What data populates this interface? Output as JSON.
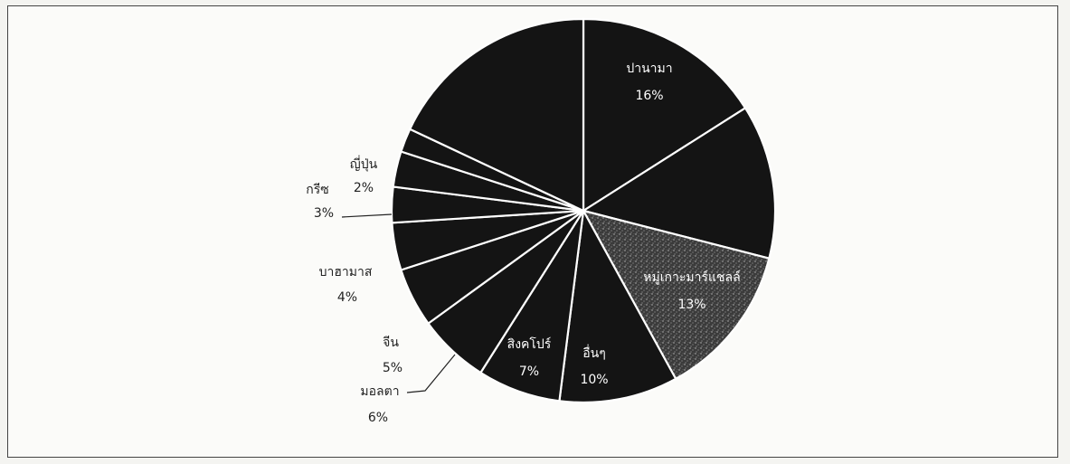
{
  "chart_data": {
    "type": "pie",
    "title": "",
    "slices": [
      {
        "label": "ปานามา",
        "value": 16,
        "value_label": "16%",
        "label_placement": "inside",
        "color": "#141414"
      },
      {
        "label": "",
        "value": 13,
        "value_label": "",
        "label_placement": "inside",
        "color": "#141414"
      },
      {
        "label": "หมู่เกาะมาร์แชลล์",
        "value": 13,
        "value_label": "13%",
        "label_placement": "inside",
        "color": "#3a3a3a"
      },
      {
        "label": "อื่นๆ",
        "value": 10,
        "value_label": "10%",
        "label_placement": "inside",
        "color": "#141414"
      },
      {
        "label": "สิงคโปร์",
        "value": 7,
        "value_label": "7%",
        "label_placement": "inside",
        "color": "#141414"
      },
      {
        "label": "มอลตา",
        "value": 6,
        "value_label": "6%",
        "label_placement": "outside",
        "color": "#141414"
      },
      {
        "label": "จีน",
        "value": 5,
        "value_label": "5%",
        "label_placement": "outside",
        "color": "#141414"
      },
      {
        "label": "บาฮามาส",
        "value": 4,
        "value_label": "4%",
        "label_placement": "outside",
        "color": "#141414"
      },
      {
        "label": "",
        "value": 3,
        "value_label": "",
        "label_placement": "none",
        "color": "#141414"
      },
      {
        "label": "กรีซ",
        "value": 3,
        "value_label": "3%",
        "label_placement": "outside",
        "color": "#141414"
      },
      {
        "label": "ญี่ปุ่น",
        "value": 2,
        "value_label": "2%",
        "label_placement": "outside",
        "color": "#141414"
      },
      {
        "label": "",
        "value": 18,
        "value_label": "",
        "label_placement": "inside",
        "color": "#141414"
      }
    ],
    "start_angle_deg": 0,
    "direction": "clockwise",
    "slice_border_color": "#ffffff",
    "legend": "none"
  }
}
